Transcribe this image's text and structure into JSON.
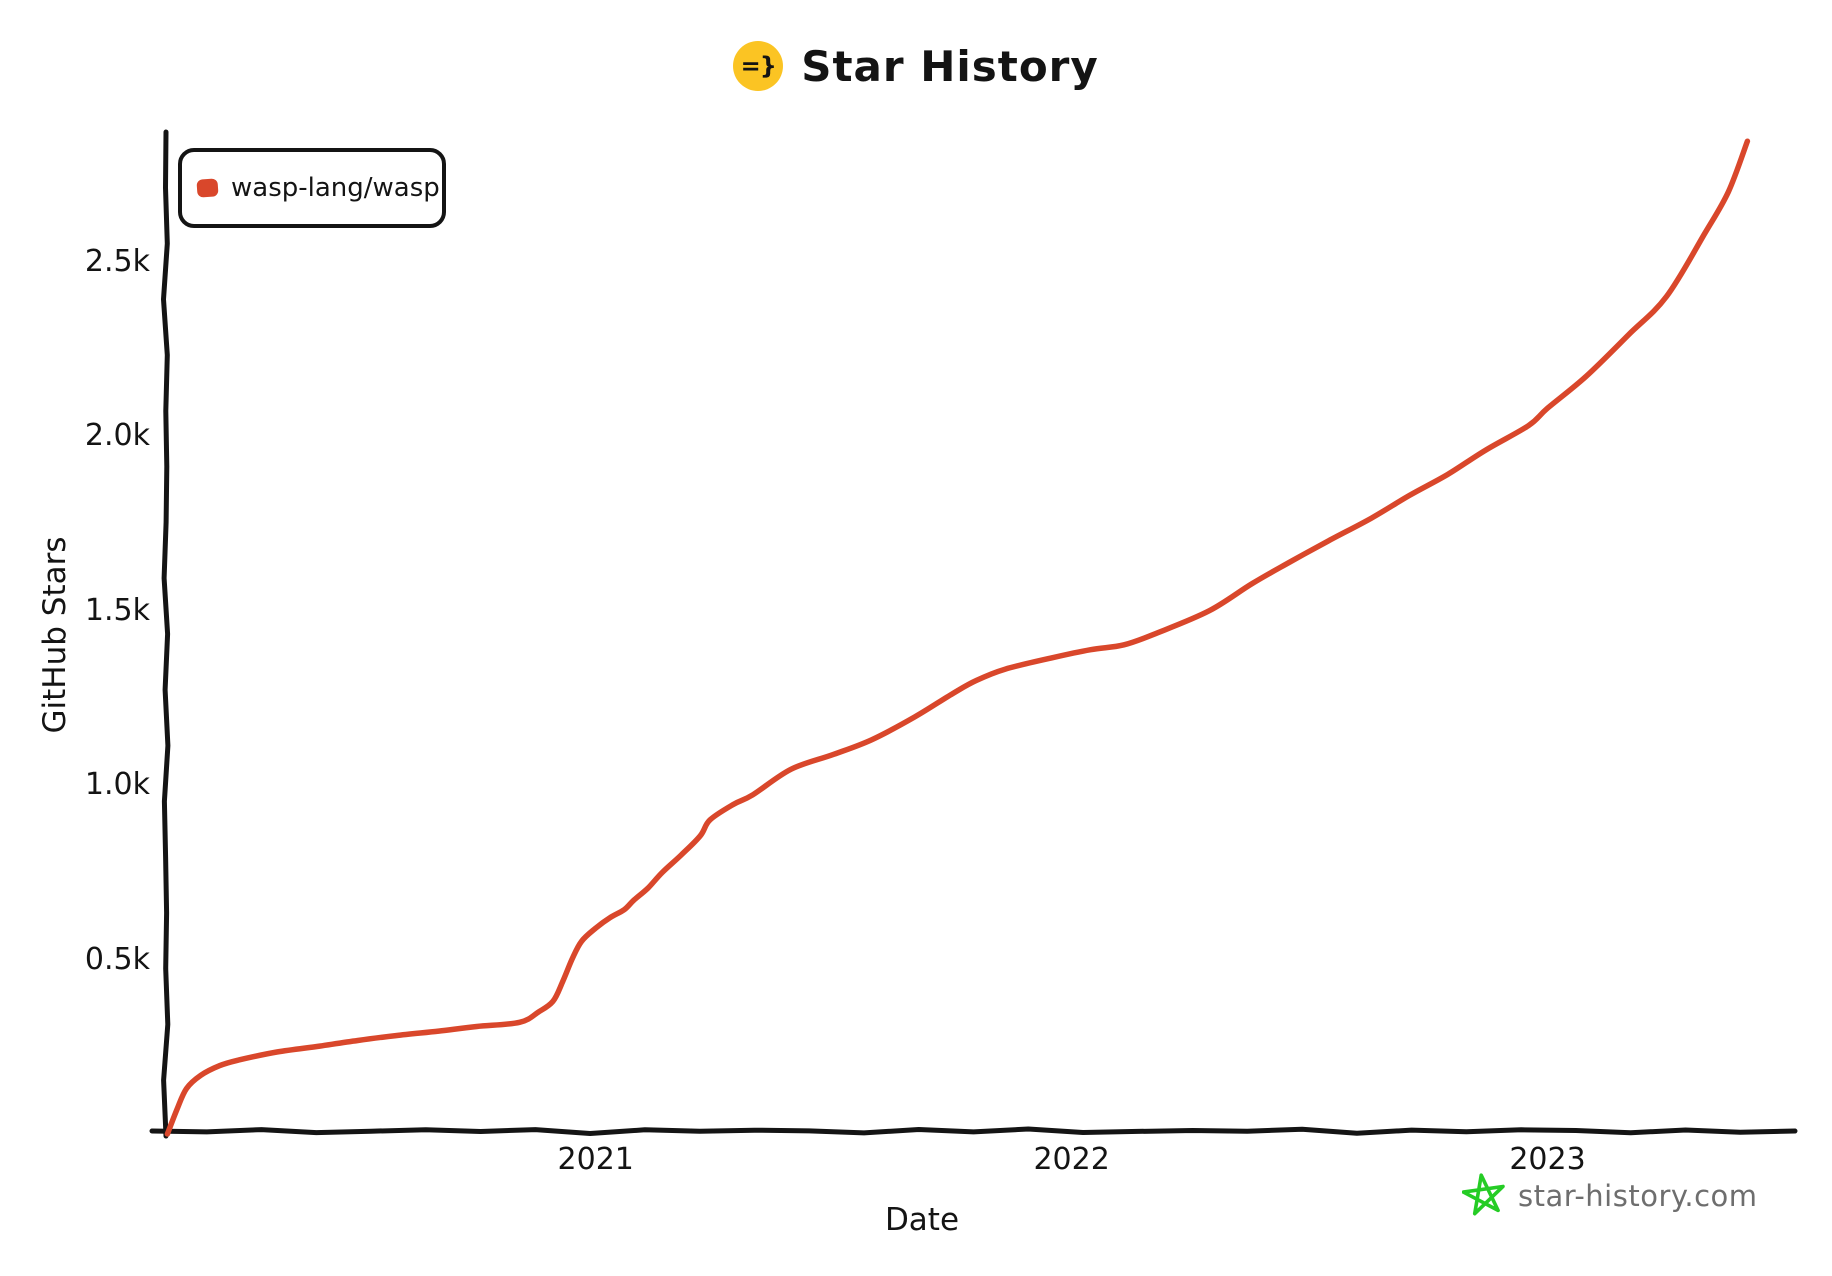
{
  "title": {
    "text": "Star History",
    "icon_glyph": "=}"
  },
  "legend": {
    "series_label": "wasp-lang/wasp"
  },
  "watermark": {
    "text": "star-history.com",
    "icon": "hand-drawn-star"
  },
  "colors": {
    "line": "#d9472b",
    "axis": "#141414",
    "title_icon_bg": "#fbc423",
    "legend_marker": "#d9472b",
    "watermark_green": "#25cc25",
    "watermark_text": "#6e6e6e"
  },
  "chart_data": {
    "type": "line",
    "title": "Star History",
    "xlabel": "Date",
    "ylabel": "GitHub Stars",
    "grid": false,
    "legend_position": "top-left",
    "x_range_years": [
      2020.097,
      2023.52
    ],
    "y_range": [
      0,
      2860
    ],
    "x_ticks": [
      {
        "label": "2021",
        "year": 2021
      },
      {
        "label": "2022",
        "year": 2022
      },
      {
        "label": "2023",
        "year": 2023
      }
    ],
    "y_ticks": [
      {
        "label": "0.5k",
        "value": 500
      },
      {
        "label": "1.0k",
        "value": 1000
      },
      {
        "label": "1.5k",
        "value": 1500
      },
      {
        "label": "2.0k",
        "value": 2000
      },
      {
        "label": "2.5k",
        "value": 2500
      }
    ],
    "series": [
      {
        "name": "wasp-lang/wasp",
        "color": "#d9472b",
        "points": [
          [
            2020.1,
            0
          ],
          [
            2020.12,
            70
          ],
          [
            2020.14,
            130
          ],
          [
            2020.17,
            168
          ],
          [
            2020.21,
            196
          ],
          [
            2020.25,
            212
          ],
          [
            2020.33,
            235
          ],
          [
            2020.42,
            252
          ],
          [
            2020.5,
            268
          ],
          [
            2020.58,
            282
          ],
          [
            2020.67,
            295
          ],
          [
            2020.75,
            308
          ],
          [
            2020.84,
            320
          ],
          [
            2020.88,
            350
          ],
          [
            2020.91,
            380
          ],
          [
            2020.93,
            435
          ],
          [
            2020.95,
            500
          ],
          [
            2020.97,
            552
          ],
          [
            2021.0,
            590
          ],
          [
            2021.03,
            620
          ],
          [
            2021.06,
            643
          ],
          [
            2021.08,
            670
          ],
          [
            2021.11,
            705
          ],
          [
            2021.14,
            750
          ],
          [
            2021.18,
            800
          ],
          [
            2021.22,
            855
          ],
          [
            2021.24,
            900
          ],
          [
            2021.29,
            945
          ],
          [
            2021.33,
            972
          ],
          [
            2021.41,
            1045
          ],
          [
            2021.5,
            1088
          ],
          [
            2021.58,
            1130
          ],
          [
            2021.67,
            1195
          ],
          [
            2021.75,
            1262
          ],
          [
            2021.8,
            1300
          ],
          [
            2021.86,
            1332
          ],
          [
            2021.96,
            1365
          ],
          [
            2022.04,
            1388
          ],
          [
            2022.11,
            1402
          ],
          [
            2022.18,
            1436
          ],
          [
            2022.29,
            1500
          ],
          [
            2022.38,
            1578
          ],
          [
            2022.46,
            1640
          ],
          [
            2022.54,
            1700
          ],
          [
            2022.63,
            1765
          ],
          [
            2022.71,
            1830
          ],
          [
            2022.79,
            1890
          ],
          [
            2022.87,
            1960
          ],
          [
            2022.96,
            2030
          ],
          [
            2023.0,
            2080
          ],
          [
            2023.08,
            2170
          ],
          [
            2023.17,
            2290
          ],
          [
            2023.25,
            2400
          ],
          [
            2023.33,
            2580
          ],
          [
            2023.38,
            2700
          ],
          [
            2023.42,
            2845
          ]
        ]
      }
    ]
  }
}
